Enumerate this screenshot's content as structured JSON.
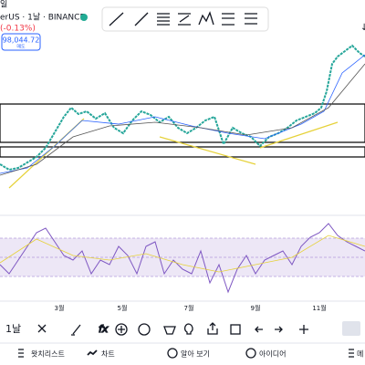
{
  "header": {
    "interval_top": "일",
    "symbol": "erUS · 1날 · BINANCE",
    "change": "(-0.13%)",
    "price": "98,044.72",
    "price_sub": "매도"
  },
  "x_axis": {
    "labels": [
      "3월",
      "5월",
      "7월",
      "9월",
      "11월"
    ]
  },
  "toolbar": {
    "interval": "1날"
  },
  "nav": {
    "items": [
      "왓치리스트",
      "차트",
      "알아 보기",
      "아이디어",
      "메"
    ]
  }
}
